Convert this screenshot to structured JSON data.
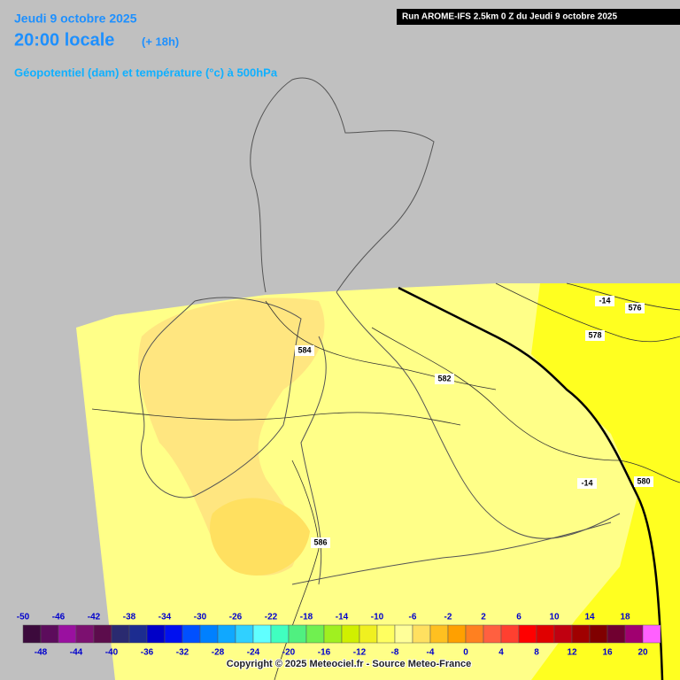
{
  "header": {
    "date": "Jeudi 9 octobre 2025",
    "time": "20:00 locale",
    "offset": "(+ 18h)",
    "title": "Géopotentiel (dam) et température (°c) à 500hPa",
    "run": "Run AROME-IFS 2.5km 0 Z du Jeudi 9 octobre 2025"
  },
  "contour_labels": [
    -14,
    576,
    578,
    584,
    582,
    -14,
    580,
    586
  ],
  "legend": {
    "labels_top": [
      -50,
      -46,
      -42,
      -38,
      -34,
      -30,
      -26,
      -22,
      -18,
      -14,
      -10,
      -6,
      -2,
      2,
      6,
      10,
      14,
      18
    ],
    "labels_bottom": [
      -48,
      -44,
      -40,
      -36,
      -32,
      -28,
      -24,
      -20,
      -16,
      -12,
      -8,
      -4,
      0,
      4,
      8,
      12,
      16,
      20
    ],
    "colors": [
      "#3c0a3c",
      "#5c0c5c",
      "#9a10a0",
      "#7c1070",
      "#5c0c4c",
      "#2a2a70",
      "#1c2c90",
      "#0000c8",
      "#0010f0",
      "#0050ff",
      "#0080ff",
      "#10a8ff",
      "#30d0ff",
      "#60ffff",
      "#40ffc0",
      "#50f080",
      "#70f050",
      "#a0f020",
      "#d0f000",
      "#f0f020",
      "#ffff60",
      "#ffff99",
      "#ffe060",
      "#ffc020",
      "#ffa000",
      "#ff8020",
      "#ff6040",
      "#ff4030",
      "#ff0000",
      "#e00000",
      "#c00010",
      "#a00000",
      "#800000",
      "#700030",
      "#a00070",
      "#ff60ff"
    ]
  },
  "copyright": "Copyright © 2025 Meteociel.fr - Source Meteo-France"
}
